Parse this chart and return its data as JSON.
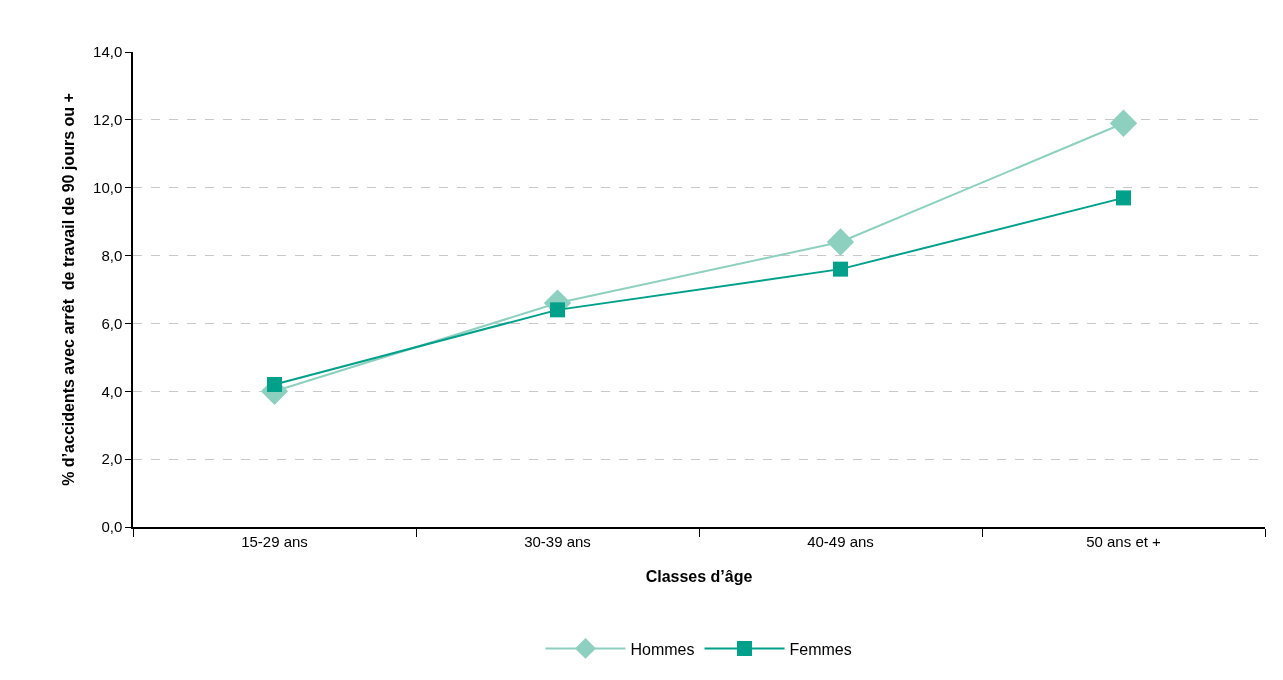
{
  "chart_data": {
    "type": "line",
    "xlabel": "Classes d’âge",
    "ylabel": "% d’accidents avec arrêt  de travail de 90 jours ou +",
    "categories": [
      "15-29 ans",
      "30-39 ans",
      "40-49 ans",
      "50 ans et +"
    ],
    "series": [
      {
        "name": "Hommes",
        "color": "#8dd0bf",
        "marker": "diamond",
        "values": [
          4.0,
          6.6,
          8.4,
          11.9
        ]
      },
      {
        "name": "Femmes",
        "color": "#00a08a",
        "marker": "square",
        "values": [
          4.2,
          6.4,
          7.6,
          9.7
        ]
      }
    ],
    "ylim": [
      0,
      14
    ],
    "yticks": [
      {
        "value": 0,
        "label": "0,0"
      },
      {
        "value": 2,
        "label": "2,0"
      },
      {
        "value": 4,
        "label": "4,0"
      },
      {
        "value": 6,
        "label": "6,0"
      },
      {
        "value": 8,
        "label": "8,0"
      },
      {
        "value": 10,
        "label": "10,0"
      },
      {
        "value": 12,
        "label": "12,0"
      },
      {
        "value": 14,
        "label": "14,0"
      }
    ],
    "grid": "y",
    "legend": "bottom",
    "line_style": "solid"
  }
}
